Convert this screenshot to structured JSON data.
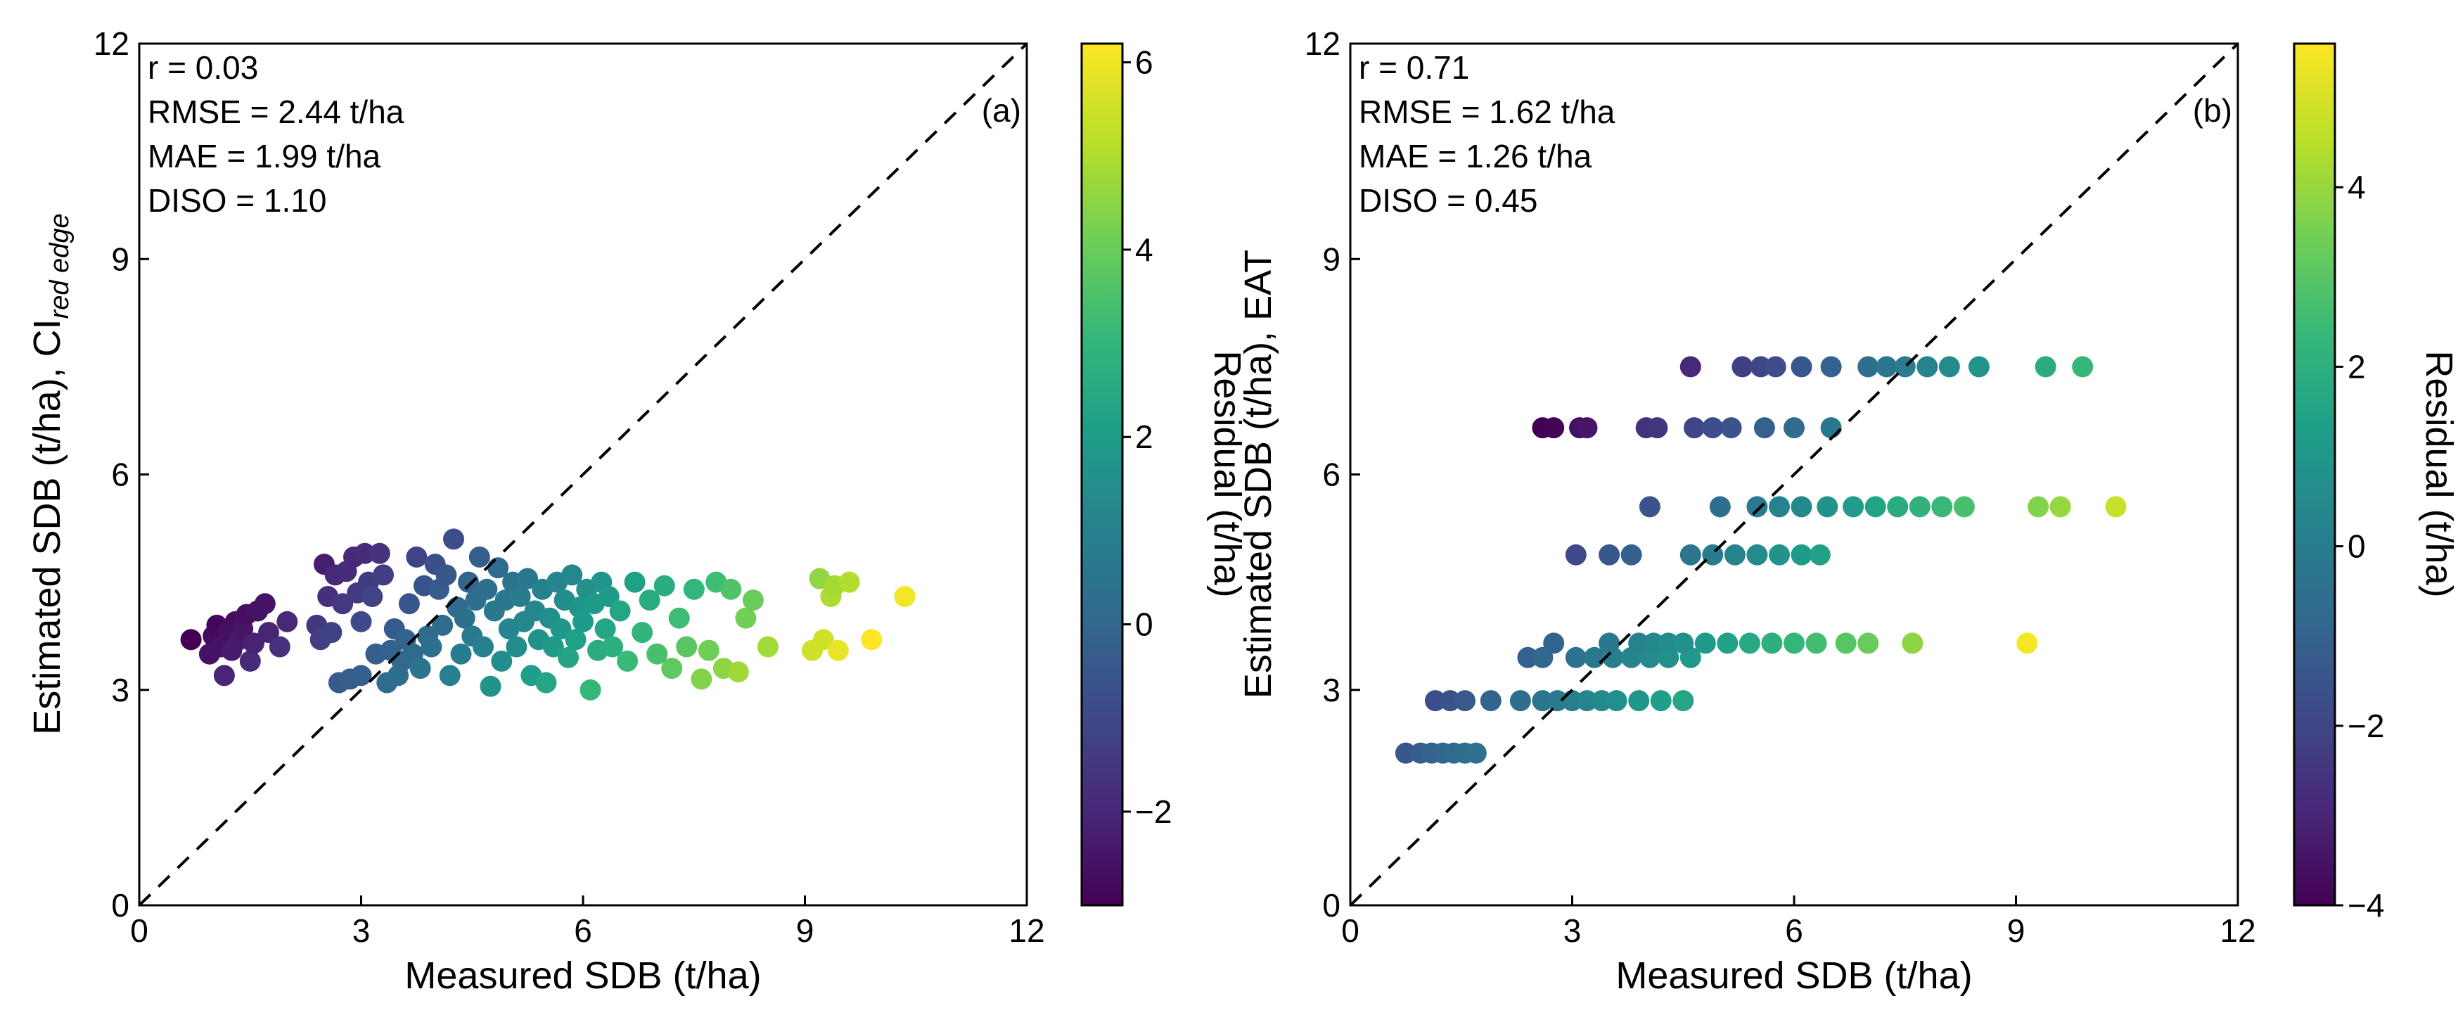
{
  "colormap": [
    "#440154",
    "#482878",
    "#3e4989",
    "#31688e",
    "#26828e",
    "#1f9e89",
    "#35b779",
    "#6ece58",
    "#b5de2b",
    "#fde725"
  ],
  "chart_data": [
    {
      "type": "scatter",
      "panel_label": "(a)",
      "xlabel": "Measured SDB (t/ha)",
      "ylabel": "Estimated SDB (t/ha), CI",
      "ylabel_subscript": "red edge",
      "xlim": [
        0,
        12
      ],
      "ylim": [
        0,
        12
      ],
      "xticks": [
        0,
        3,
        6,
        9,
        12
      ],
      "yticks": [
        0,
        3,
        6,
        9,
        12
      ],
      "stats": [
        "r = 0.03",
        "RMSE = 2.44 t/ha",
        "MAE = 1.99 t/ha",
        "DISO = 1.10"
      ],
      "reference_line": "1:1",
      "colorbar": {
        "label": "Residual (t/ha)",
        "range": [
          -3.0,
          6.2
        ],
        "ticks": [
          -2,
          0,
          2,
          4,
          6
        ],
        "tick_labels": [
          "−2",
          "0",
          "2",
          "4",
          "6"
        ]
      },
      "points": [
        [
          0.7,
          3.7
        ],
        [
          0.95,
          3.5
        ],
        [
          1.0,
          3.75
        ],
        [
          1.05,
          3.9
        ],
        [
          1.1,
          3.6
        ],
        [
          1.15,
          3.2
        ],
        [
          1.2,
          3.8
        ],
        [
          1.25,
          3.55
        ],
        [
          1.3,
          3.95
        ],
        [
          1.35,
          3.7
        ],
        [
          1.4,
          3.85
        ],
        [
          1.45,
          4.05
        ],
        [
          1.5,
          3.4
        ],
        [
          1.55,
          3.65
        ],
        [
          1.6,
          4.1
        ],
        [
          1.7,
          4.2
        ],
        [
          1.75,
          3.8
        ],
        [
          1.9,
          3.6
        ],
        [
          2.0,
          3.95
        ],
        [
          2.4,
          3.9
        ],
        [
          2.45,
          3.7
        ],
        [
          2.5,
          4.75
        ],
        [
          2.55,
          4.3
        ],
        [
          2.6,
          3.8
        ],
        [
          2.65,
          4.6
        ],
        [
          2.7,
          3.1
        ],
        [
          2.75,
          4.2
        ],
        [
          2.8,
          4.65
        ],
        [
          2.85,
          3.15
        ],
        [
          2.9,
          4.85
        ],
        [
          2.95,
          4.35
        ],
        [
          3.0,
          3.95
        ],
        [
          3.0,
          3.2
        ],
        [
          3.05,
          4.9
        ],
        [
          3.1,
          4.5
        ],
        [
          3.15,
          4.3
        ],
        [
          3.2,
          3.5
        ],
        [
          3.25,
          4.9
        ],
        [
          3.3,
          4.6
        ],
        [
          3.35,
          3.1
        ],
        [
          3.4,
          3.55
        ],
        [
          3.45,
          3.85
        ],
        [
          3.5,
          3.2
        ],
        [
          3.55,
          3.4
        ],
        [
          3.6,
          3.7
        ],
        [
          3.65,
          4.2
        ],
        [
          3.7,
          3.5
        ],
        [
          3.75,
          4.85
        ],
        [
          3.8,
          3.3
        ],
        [
          3.85,
          4.45
        ],
        [
          3.9,
          3.75
        ],
        [
          3.95,
          3.6
        ],
        [
          4.0,
          4.75
        ],
        [
          4.05,
          4.4
        ],
        [
          4.1,
          3.9
        ],
        [
          4.15,
          4.6
        ],
        [
          4.2,
          3.2
        ],
        [
          4.25,
          5.1
        ],
        [
          4.3,
          4.15
        ],
        [
          4.35,
          3.5
        ],
        [
          4.4,
          4.0
        ],
        [
          4.45,
          4.5
        ],
        [
          4.5,
          3.75
        ],
        [
          4.55,
          4.25
        ],
        [
          4.6,
          4.85
        ],
        [
          4.65,
          3.6
        ],
        [
          4.7,
          4.4
        ],
        [
          4.75,
          3.05
        ],
        [
          4.8,
          4.1
        ],
        [
          4.85,
          4.7
        ],
        [
          4.9,
          3.4
        ],
        [
          4.95,
          4.25
        ],
        [
          5.0,
          3.85
        ],
        [
          5.05,
          4.5
        ],
        [
          5.1,
          3.6
        ],
        [
          5.15,
          4.3
        ],
        [
          5.2,
          3.95
        ],
        [
          5.25,
          4.55
        ],
        [
          5.3,
          3.2
        ],
        [
          5.35,
          4.1
        ],
        [
          5.4,
          3.7
        ],
        [
          5.45,
          4.4
        ],
        [
          5.5,
          3.1
        ],
        [
          5.55,
          4.0
        ],
        [
          5.6,
          3.6
        ],
        [
          5.65,
          4.5
        ],
        [
          5.7,
          3.85
        ],
        [
          5.75,
          4.25
        ],
        [
          5.8,
          3.45
        ],
        [
          5.85,
          4.6
        ],
        [
          5.9,
          3.7
        ],
        [
          5.95,
          4.15
        ],
        [
          6.0,
          3.95
        ],
        [
          6.05,
          4.4
        ],
        [
          6.1,
          3.0
        ],
        [
          6.15,
          4.2
        ],
        [
          6.2,
          3.55
        ],
        [
          6.25,
          4.5
        ],
        [
          6.3,
          3.85
        ],
        [
          6.35,
          4.3
        ],
        [
          6.4,
          3.6
        ],
        [
          6.5,
          4.1
        ],
        [
          6.6,
          3.4
        ],
        [
          6.7,
          4.5
        ],
        [
          6.8,
          3.8
        ],
        [
          6.9,
          4.25
        ],
        [
          7.0,
          3.5
        ],
        [
          7.1,
          4.45
        ],
        [
          7.2,
          3.3
        ],
        [
          7.3,
          4.0
        ],
        [
          7.4,
          3.6
        ],
        [
          7.5,
          4.4
        ],
        [
          7.6,
          3.15
        ],
        [
          7.7,
          3.55
        ],
        [
          7.8,
          4.5
        ],
        [
          7.9,
          3.3
        ],
        [
          8.0,
          4.4
        ],
        [
          8.1,
          3.25
        ],
        [
          8.2,
          4.0
        ],
        [
          8.3,
          4.25
        ],
        [
          8.5,
          3.6
        ],
        [
          9.1,
          3.55
        ],
        [
          9.2,
          4.55
        ],
        [
          9.25,
          3.7
        ],
        [
          9.35,
          4.3
        ],
        [
          9.4,
          4.45
        ],
        [
          9.45,
          3.55
        ],
        [
          9.6,
          4.5
        ],
        [
          9.9,
          3.7
        ],
        [
          10.35,
          4.3
        ]
      ]
    },
    {
      "type": "scatter",
      "panel_label": "(b)",
      "xlabel": "Measured SDB (t/ha)",
      "ylabel": "Estimated SDB (t/ha), EAT",
      "xlim": [
        0,
        12
      ],
      "ylim": [
        0,
        12
      ],
      "xticks": [
        0,
        3,
        6,
        9,
        12
      ],
      "yticks": [
        0,
        3,
        6,
        9,
        12
      ],
      "stats": [
        "r = 0.71",
        "RMSE = 1.62 t/ha",
        "MAE = 1.26 t/ha",
        "DISO = 0.45"
      ],
      "reference_line": "1:1",
      "colorbar": {
        "label": "Residual (t/ha)",
        "range": [
          -4.0,
          5.6
        ],
        "ticks": [
          -4,
          -2,
          0,
          2,
          4
        ],
        "tick_labels": [
          "−4",
          "−2",
          "0",
          "2",
          "4"
        ]
      },
      "points": [
        [
          0.75,
          2.12
        ],
        [
          0.95,
          2.12
        ],
        [
          1.1,
          2.12
        ],
        [
          1.25,
          2.12
        ],
        [
          1.4,
          2.12
        ],
        [
          1.55,
          2.12
        ],
        [
          1.7,
          2.12
        ],
        [
          1.15,
          2.85
        ],
        [
          1.35,
          2.85
        ],
        [
          1.55,
          2.85
        ],
        [
          1.9,
          2.85
        ],
        [
          2.3,
          2.85
        ],
        [
          2.6,
          2.85
        ],
        [
          2.8,
          2.85
        ],
        [
          3.0,
          2.85
        ],
        [
          3.2,
          2.85
        ],
        [
          3.4,
          2.85
        ],
        [
          3.6,
          2.85
        ],
        [
          3.9,
          2.85
        ],
        [
          4.2,
          2.85
        ],
        [
          4.5,
          2.85
        ],
        [
          2.4,
          3.45
        ],
        [
          2.6,
          3.45
        ],
        [
          3.05,
          3.45
        ],
        [
          3.3,
          3.45
        ],
        [
          3.55,
          3.45
        ],
        [
          3.8,
          3.45
        ],
        [
          4.05,
          3.45
        ],
        [
          4.3,
          3.45
        ],
        [
          4.6,
          3.45
        ],
        [
          2.75,
          3.65
        ],
        [
          3.5,
          3.65
        ],
        [
          3.9,
          3.65
        ],
        [
          4.1,
          3.65
        ],
        [
          4.3,
          3.65
        ],
        [
          4.5,
          3.65
        ],
        [
          4.8,
          3.65
        ],
        [
          5.1,
          3.65
        ],
        [
          5.4,
          3.65
        ],
        [
          5.7,
          3.65
        ],
        [
          6.0,
          3.65
        ],
        [
          6.3,
          3.65
        ],
        [
          6.7,
          3.65
        ],
        [
          7.0,
          3.65
        ],
        [
          7.6,
          3.65
        ],
        [
          9.15,
          3.65
        ],
        [
          3.05,
          4.88
        ],
        [
          3.5,
          4.88
        ],
        [
          3.8,
          4.88
        ],
        [
          4.6,
          4.88
        ],
        [
          4.9,
          4.88
        ],
        [
          5.2,
          4.88
        ],
        [
          5.5,
          4.88
        ],
        [
          5.8,
          4.88
        ],
        [
          6.1,
          4.88
        ],
        [
          6.35,
          4.88
        ],
        [
          4.05,
          5.55
        ],
        [
          5.0,
          5.55
        ],
        [
          5.5,
          5.55
        ],
        [
          5.8,
          5.55
        ],
        [
          6.1,
          5.55
        ],
        [
          6.45,
          5.55
        ],
        [
          6.8,
          5.55
        ],
        [
          7.1,
          5.55
        ],
        [
          7.4,
          5.55
        ],
        [
          7.7,
          5.55
        ],
        [
          8.0,
          5.55
        ],
        [
          8.3,
          5.55
        ],
        [
          9.3,
          5.55
        ],
        [
          9.6,
          5.55
        ],
        [
          10.35,
          5.55
        ],
        [
          2.6,
          6.65
        ],
        [
          2.75,
          6.65
        ],
        [
          3.1,
          6.65
        ],
        [
          3.2,
          6.65
        ],
        [
          4.0,
          6.65
        ],
        [
          4.15,
          6.65
        ],
        [
          4.65,
          6.65
        ],
        [
          4.9,
          6.65
        ],
        [
          5.15,
          6.65
        ],
        [
          5.6,
          6.65
        ],
        [
          6.0,
          6.65
        ],
        [
          6.5,
          6.65
        ],
        [
          4.6,
          7.5
        ],
        [
          5.3,
          7.5
        ],
        [
          5.55,
          7.5
        ],
        [
          5.75,
          7.5
        ],
        [
          6.1,
          7.5
        ],
        [
          6.5,
          7.5
        ],
        [
          7.0,
          7.5
        ],
        [
          7.25,
          7.5
        ],
        [
          7.5,
          7.5
        ],
        [
          7.8,
          7.5
        ],
        [
          8.1,
          7.5
        ],
        [
          8.5,
          7.5
        ],
        [
          9.4,
          7.5
        ],
        [
          9.9,
          7.5
        ]
      ]
    }
  ]
}
